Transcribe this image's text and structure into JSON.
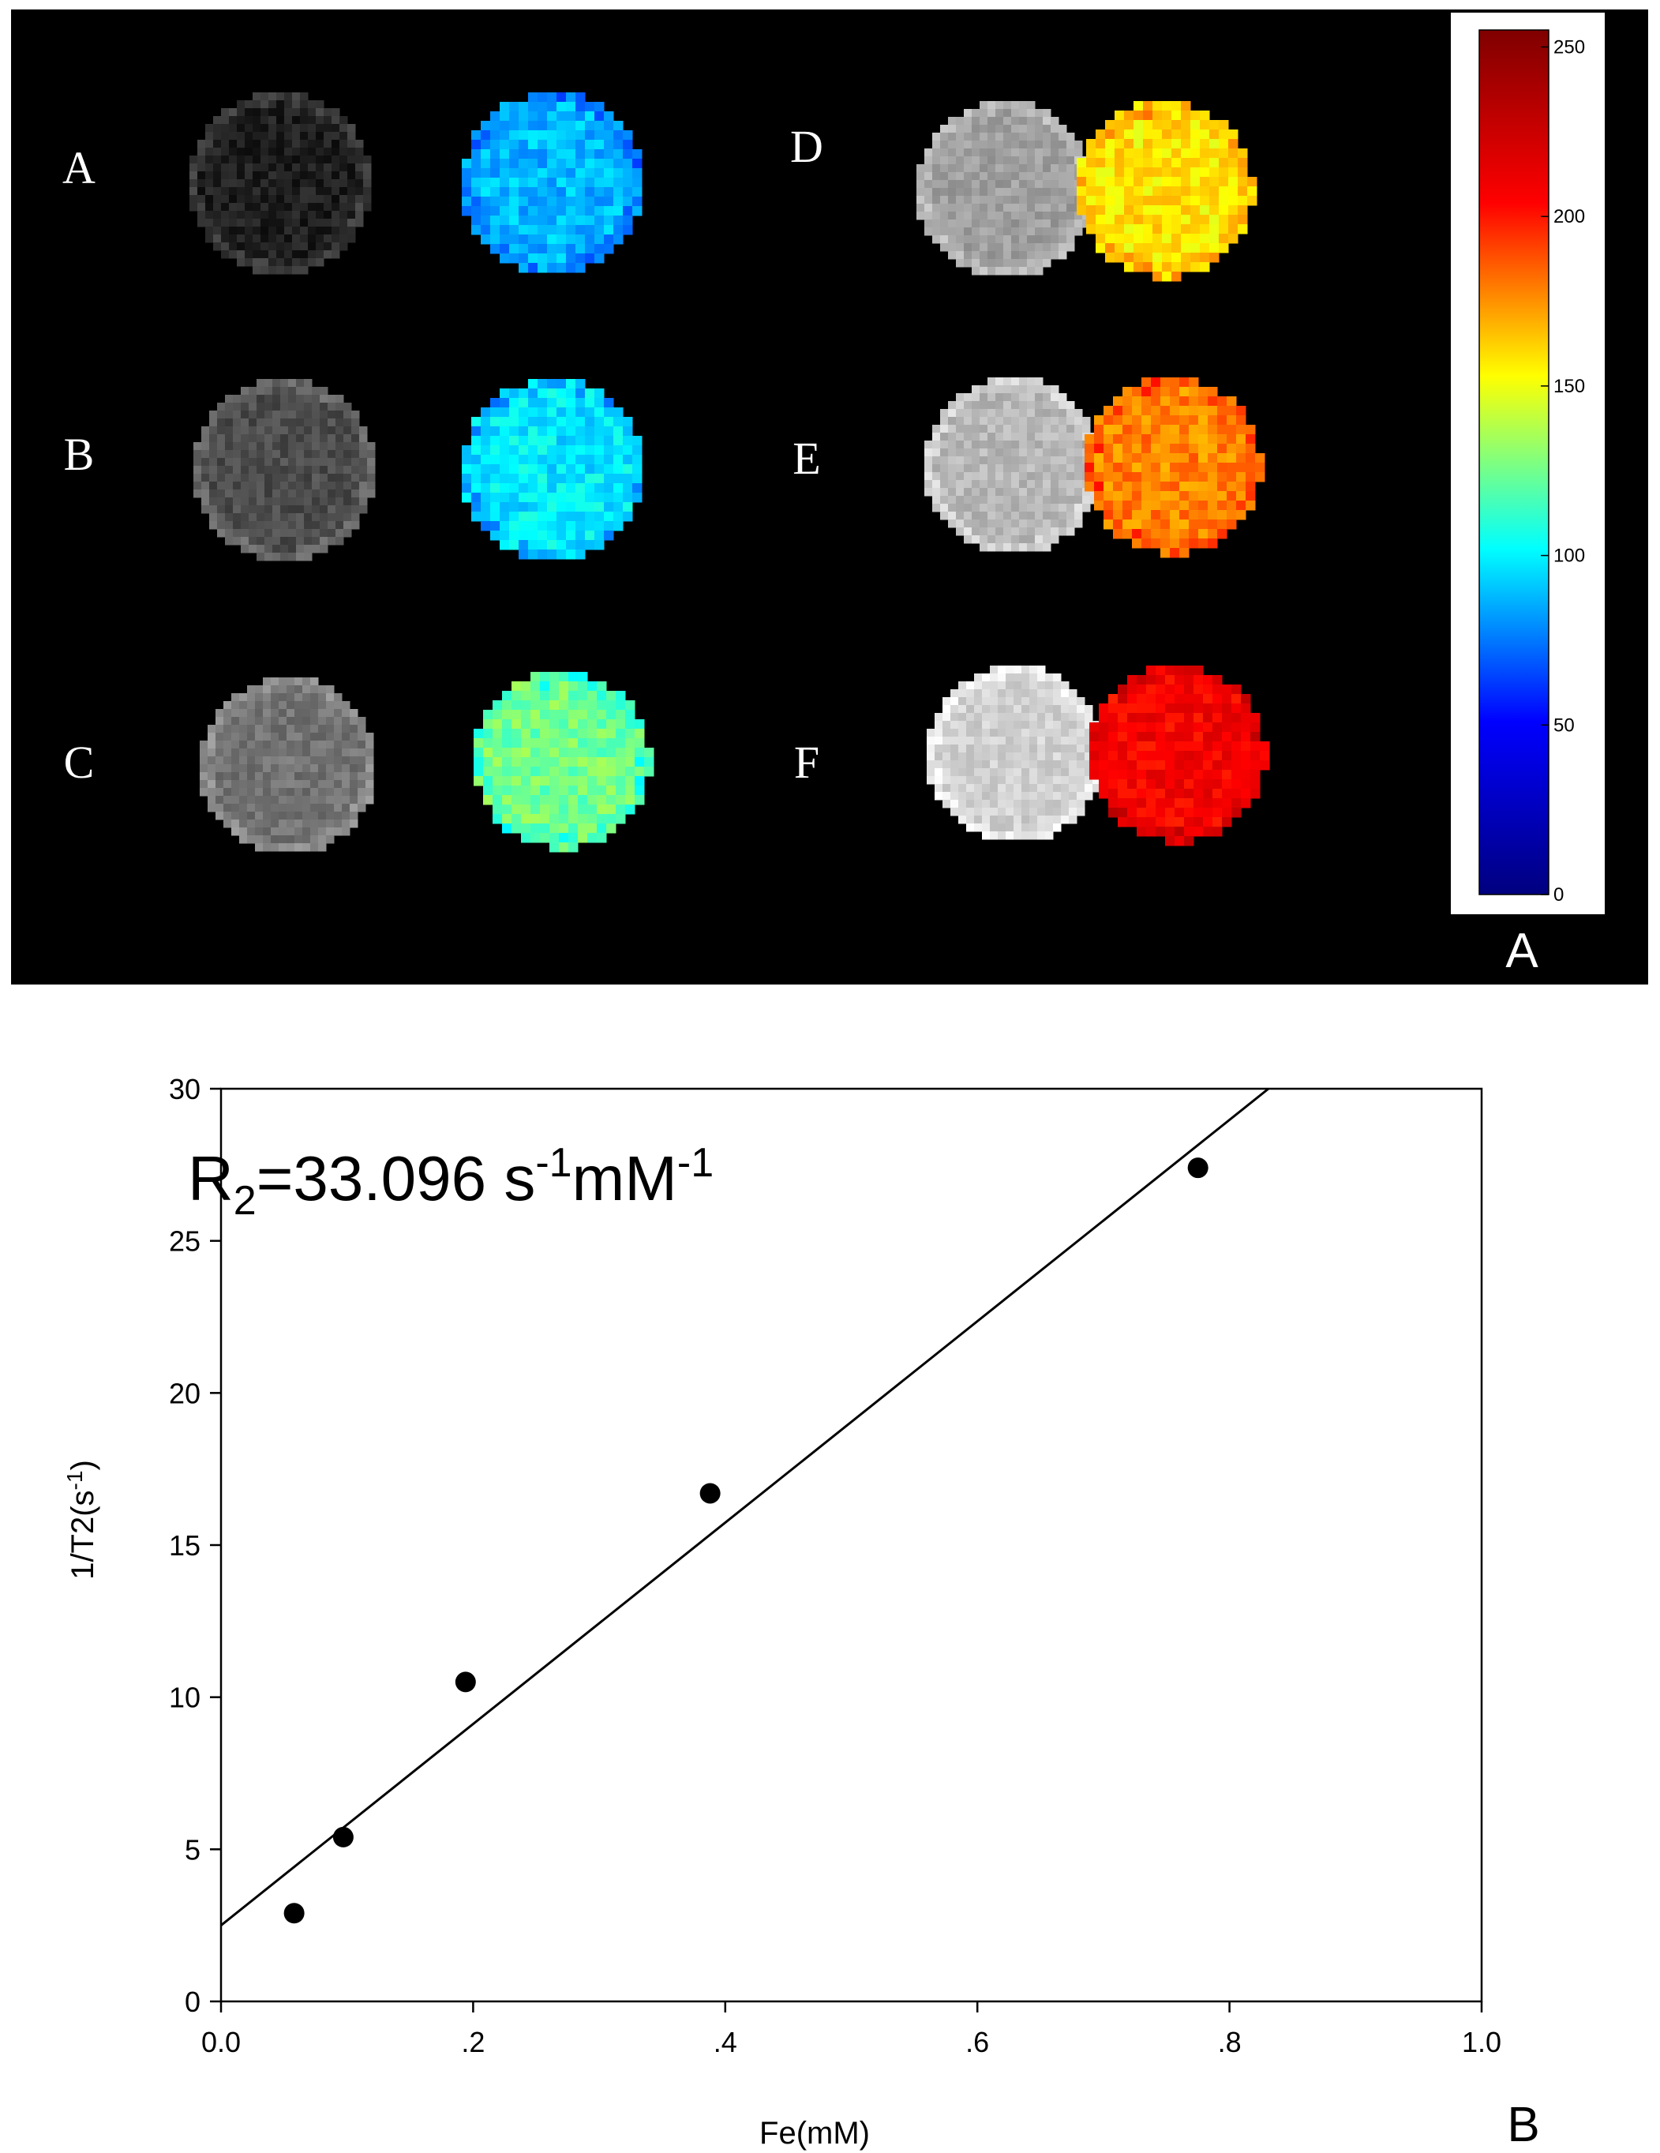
{
  "panel_a": {
    "panel_letter": "A",
    "samples": [
      {
        "label": "A",
        "gray_level": 0.12,
        "map_value": 88
      },
      {
        "label": "B",
        "gray_level": 0.3,
        "map_value": 98
      },
      {
        "label": "C",
        "gray_level": 0.45,
        "map_value": 125
      },
      {
        "label": "D",
        "gray_level": 0.62,
        "map_value": 158
      },
      {
        "label": "E",
        "gray_level": 0.72,
        "map_value": 178
      },
      {
        "label": "F",
        "gray_level": 0.82,
        "map_value": 208
      }
    ],
    "colorbar": {
      "min": 0,
      "max": 255,
      "ticks": [
        {
          "value": 0,
          "label": "0"
        },
        {
          "value": 50,
          "label": "50"
        },
        {
          "value": 100,
          "label": "100"
        },
        {
          "value": 150,
          "label": "150"
        },
        {
          "value": 200,
          "label": "200"
        },
        {
          "value": 250,
          "label": "250"
        }
      ],
      "colormap": [
        "#00007f",
        "#0000ff",
        "#00ffff",
        "#ffff00",
        "#ff0000",
        "#7f0000"
      ]
    }
  },
  "chart_data": {
    "type": "scatter",
    "panel_letter": "B",
    "annotation": {
      "base": "R",
      "sub": "2",
      "text1": "=33.096 s",
      "sup1": "-1",
      "text2": "mM",
      "sup2": "-1"
    },
    "xlabel": "Fe(mM)",
    "ylabel": {
      "base": "1/T2(s",
      "sup": "-1",
      "end": ")"
    },
    "xlim": [
      0,
      1.0
    ],
    "ylim": [
      0,
      30
    ],
    "xticks": [
      {
        "value": 0.0,
        "label": "0.0"
      },
      {
        "value": 0.2,
        "label": ".2"
      },
      {
        "value": 0.4,
        "label": ".4"
      },
      {
        "value": 0.6,
        "label": ".6"
      },
      {
        "value": 0.8,
        "label": ".8"
      },
      {
        "value": 1.0,
        "label": "1.0"
      }
    ],
    "yticks": [
      {
        "value": 0,
        "label": "0"
      },
      {
        "value": 5,
        "label": "5"
      },
      {
        "value": 10,
        "label": "10"
      },
      {
        "value": 15,
        "label": "15"
      },
      {
        "value": 20,
        "label": "20"
      },
      {
        "value": 25,
        "label": "25"
      },
      {
        "value": 30,
        "label": "30"
      }
    ],
    "points": [
      {
        "x": 0.058,
        "y": 2.9
      },
      {
        "x": 0.097,
        "y": 5.4
      },
      {
        "x": 0.194,
        "y": 10.5
      },
      {
        "x": 0.388,
        "y": 16.7
      },
      {
        "x": 0.775,
        "y": 27.4
      }
    ],
    "fit_line": {
      "slope": 33.096,
      "intercept": 2.5
    },
    "colors": {
      "points": "#000000",
      "line": "#000000"
    }
  }
}
